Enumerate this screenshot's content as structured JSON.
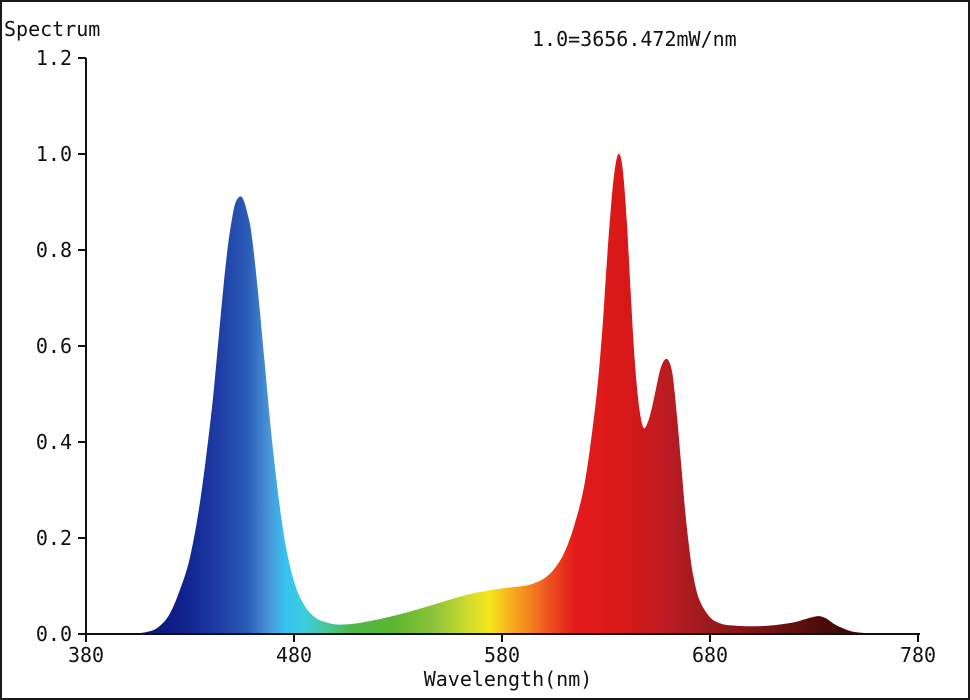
{
  "chart_data": {
    "type": "area",
    "ylabel": "Spectrum",
    "xlabel": "Wavelength(nm)",
    "annotation": "1.0=3656.472mW/nm",
    "xlim": [
      380,
      780
    ],
    "ylim": [
      0,
      1.2
    ],
    "xticks": [
      "380",
      "480",
      "580",
      "680",
      "780"
    ],
    "yticks": [
      "0.0",
      "0.2",
      "0.4",
      "0.6",
      "0.8",
      "1.0",
      "1.2"
    ],
    "grid": false,
    "series": [
      {
        "x": [
          380,
          400,
          410,
          415,
          420,
          425,
          430,
          435,
          440,
          443,
          446,
          448,
          450,
          452,
          455,
          458,
          460,
          463,
          466,
          470,
          475,
          480,
          485,
          490,
          495,
          500,
          505,
          510,
          520,
          530,
          540,
          550,
          560,
          570,
          580,
          590,
          595,
          600,
          605,
          610,
          615,
          620,
          625,
          628,
          630,
          632,
          634,
          636,
          638,
          640,
          642,
          644,
          646,
          648,
          650,
          652,
          654,
          656,
          658,
          660,
          662,
          664,
          666,
          668,
          670,
          672,
          675,
          680,
          685,
          690,
          700,
          710,
          720,
          725,
          730,
          733,
          736,
          740,
          745,
          750,
          760,
          780
        ],
        "y": [
          0,
          0,
          0.005,
          0.015,
          0.04,
          0.09,
          0.16,
          0.28,
          0.45,
          0.58,
          0.72,
          0.8,
          0.86,
          0.9,
          0.91,
          0.87,
          0.82,
          0.7,
          0.56,
          0.38,
          0.21,
          0.11,
          0.06,
          0.035,
          0.025,
          0.02,
          0.02,
          0.022,
          0.03,
          0.04,
          0.052,
          0.065,
          0.078,
          0.088,
          0.095,
          0.1,
          0.105,
          0.115,
          0.135,
          0.17,
          0.23,
          0.32,
          0.48,
          0.62,
          0.75,
          0.87,
          0.96,
          1.0,
          0.97,
          0.86,
          0.7,
          0.56,
          0.47,
          0.43,
          0.44,
          0.47,
          0.51,
          0.55,
          0.57,
          0.57,
          0.54,
          0.46,
          0.36,
          0.26,
          0.18,
          0.12,
          0.07,
          0.035,
          0.022,
          0.018,
          0.016,
          0.018,
          0.024,
          0.03,
          0.036,
          0.037,
          0.032,
          0.02,
          0.01,
          0.004,
          0.001,
          0
        ]
      }
    ],
    "fill_gradient": [
      {
        "x": 380,
        "color": "#0a0f5c"
      },
      {
        "x": 425,
        "color": "#0f1f8a"
      },
      {
        "x": 445,
        "color": "#1f3fa6"
      },
      {
        "x": 458,
        "color": "#2a5cb8"
      },
      {
        "x": 468,
        "color": "#4a95d8"
      },
      {
        "x": 476,
        "color": "#37c3ee"
      },
      {
        "x": 485,
        "color": "#3bcde0"
      },
      {
        "x": 495,
        "color": "#45c9a0"
      },
      {
        "x": 508,
        "color": "#4cb848"
      },
      {
        "x": 528,
        "color": "#5db531"
      },
      {
        "x": 548,
        "color": "#8fc43a"
      },
      {
        "x": 565,
        "color": "#d4de2a"
      },
      {
        "x": 574,
        "color": "#f5e71b"
      },
      {
        "x": 583,
        "color": "#f7b51d"
      },
      {
        "x": 593,
        "color": "#f2851d"
      },
      {
        "x": 603,
        "color": "#ed4f1f"
      },
      {
        "x": 615,
        "color": "#e31b1b"
      },
      {
        "x": 640,
        "color": "#d81818"
      },
      {
        "x": 660,
        "color": "#b91c22"
      },
      {
        "x": 680,
        "color": "#9a1a1e"
      },
      {
        "x": 705,
        "color": "#7a1416"
      },
      {
        "x": 735,
        "color": "#4a0a0a"
      },
      {
        "x": 780,
        "color": "#1a0505"
      }
    ]
  }
}
